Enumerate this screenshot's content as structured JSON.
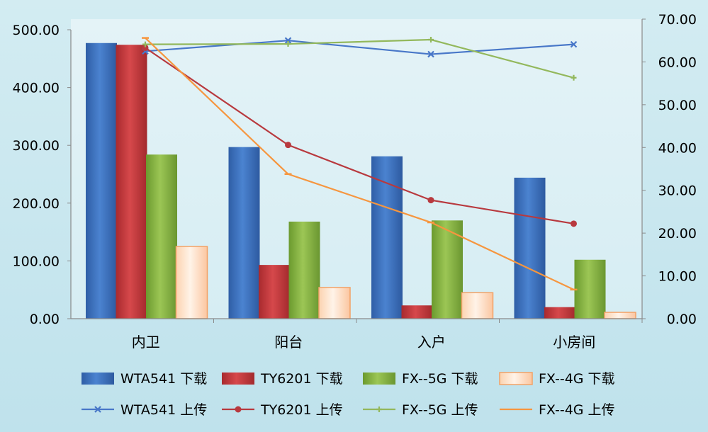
{
  "chart_data": {
    "type": "bar",
    "title": "",
    "categories": [
      "内卫",
      "阳台",
      "入户",
      "小房间"
    ],
    "bar_series": [
      {
        "name": "WTA541 下载",
        "values": [
          477,
          297,
          281,
          244
        ],
        "color": "#3b6fba"
      },
      {
        "name": "TY6201 下载",
        "values": [
          474,
          93,
          23,
          20
        ],
        "color": "#c0373a"
      },
      {
        "name": "FX--5G 下载",
        "values": [
          284,
          168,
          170,
          102
        ],
        "color": "#7eab3c"
      },
      {
        "name": "FX--4G 下载",
        "values": [
          125,
          54,
          45,
          11
        ],
        "color": "#fbc9a0"
      }
    ],
    "line_series": [
      {
        "name": "WTA541 上传",
        "values": [
          62.5,
          65.0,
          61.8,
          64.1
        ],
        "color": "#4877c8",
        "marker": "x"
      },
      {
        "name": "TY6201 上传",
        "values": [
          63.3,
          40.6,
          27.7,
          22.2
        ],
        "color": "#b8393e",
        "marker": "circle"
      },
      {
        "name": "FX--5G 上传",
        "values": [
          64.1,
          64.2,
          65.2,
          56.3
        ],
        "color": "#93b85c",
        "marker": "plus"
      },
      {
        "name": "FX--4G 上传",
        "values": [
          65.6,
          33.8,
          22.5,
          6.8
        ],
        "color": "#f6963f",
        "marker": "dash"
      }
    ],
    "y_left": {
      "min": 0,
      "max": 500,
      "ticks": [
        "0.00",
        "100.00",
        "200.00",
        "300.00",
        "400.00",
        "500.00"
      ]
    },
    "y_right": {
      "min": 0,
      "max": 70,
      "ticks": [
        "0.00",
        "10.00",
        "20.00",
        "30.00",
        "40.00",
        "50.00",
        "60.00",
        "70.00"
      ]
    },
    "xlabel": "",
    "ylabel": "",
    "grid": false,
    "legend_position": "bottom"
  }
}
